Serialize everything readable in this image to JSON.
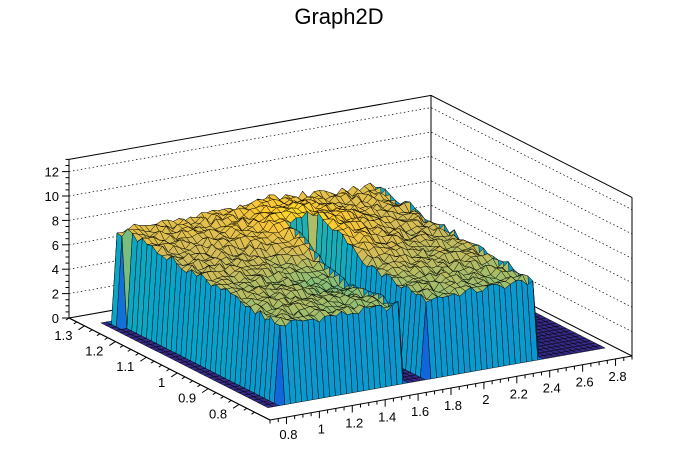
{
  "chart_data": {
    "type": "surface",
    "title": "Graph2D",
    "xlabel": "",
    "ylabel": "",
    "zlabel": "",
    "x_ticks": [
      0.8,
      1,
      1.2,
      1.4,
      1.6,
      1.8,
      2,
      2.2,
      2.4,
      2.6,
      2.8
    ],
    "x_tick_labels": [
      "0.8",
      "1",
      "1.2",
      "1.4",
      "1.6",
      "1.8",
      "2",
      "2.2",
      "2.4",
      "2.6",
      "2.8"
    ],
    "y_ticks": [
      0.8,
      0.9,
      1,
      1.1,
      1.2,
      1.3
    ],
    "y_tick_labels": [
      "0.8",
      "0.9",
      "1",
      "1.1",
      "1.2",
      "1.3"
    ],
    "z_ticks": [
      0,
      2,
      4,
      6,
      8,
      10,
      12
    ],
    "z_tick_labels": [
      "0",
      "2",
      "4",
      "6",
      "8",
      "10",
      "12"
    ],
    "xlim": [
      0.7,
      2.9
    ],
    "ylim": [
      0.7,
      1.35
    ],
    "zlim": [
      0,
      13
    ],
    "colormap": [
      "#352a87",
      "#0f5cdd",
      "#1481d6",
      "#06a4ca",
      "#2eb7a4",
      "#87bf77",
      "#d1bb59",
      "#fec832",
      "#f9fb0e"
    ],
    "surface": {
      "description_of_shape": "plateau at z≈6-8 for x in [0.8,1.62] and x in [1.78,2.45] over y in [0.76,1.3], z≈0 elsewhere; gap near x≈1.7 at front",
      "x_range": [
        0.8,
        2.85
      ],
      "y_range": [
        0.76,
        1.3
      ],
      "plateau_height_min": 6,
      "plateau_height_max": 9.8,
      "base_height": 0
    },
    "grid": {
      "z_gridlines": true
    },
    "legend": "none"
  }
}
